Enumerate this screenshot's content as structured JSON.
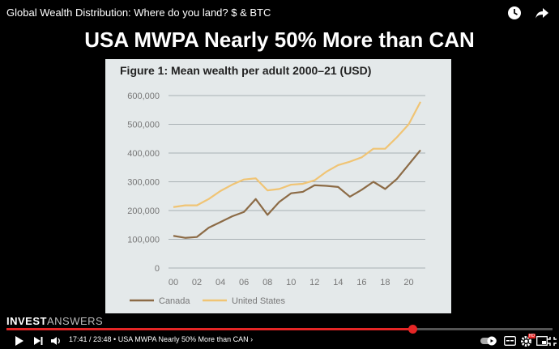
{
  "video": {
    "title": "Global Wealth Distribution: Where do you land? $ & BTC",
    "slide_title": "USA MWPA Nearly 50% More than CAN",
    "watermark_a": "INVEST",
    "watermark_b": "ANSWERS",
    "current_time": "17:41",
    "duration": "23:48",
    "time_text": "17:41 / 23:48 • USA MWPA Nearly 50% More than CAN ›",
    "progress_fraction": 0.743,
    "hd_badge": "HD"
  },
  "icons": {
    "top": [
      "clock-icon",
      "share-icon"
    ],
    "controls": [
      "play-icon",
      "next-icon",
      "volume-icon",
      "autoplay-toggle-icon",
      "subtitles-icon",
      "settings-icon",
      "miniplayer-icon",
      "exit-fullscreen-icon"
    ]
  },
  "colors": {
    "canada": "#8c6b46",
    "united_states": "#f0c474",
    "panel": "#e4e9ea",
    "progress": "#e52626"
  },
  "chart_data": {
    "type": "line",
    "title": "Figure 1: Mean wealth per adult 2000–21 (USD)",
    "xlabel": "",
    "ylabel": "",
    "x": [
      2000,
      2001,
      2002,
      2003,
      2004,
      2005,
      2006,
      2007,
      2008,
      2009,
      2010,
      2011,
      2012,
      2013,
      2014,
      2015,
      2016,
      2017,
      2018,
      2019,
      2020,
      2021
    ],
    "x_tick_labels": [
      "00",
      "02",
      "04",
      "06",
      "08",
      "10",
      "12",
      "14",
      "16",
      "18",
      "20"
    ],
    "y_ticks": [
      0,
      100000,
      200000,
      300000,
      400000,
      500000,
      600000
    ],
    "y_tick_labels": [
      "0",
      "100,000",
      "200,000",
      "300,000",
      "400,000",
      "500,000",
      "600,000"
    ],
    "ylim": [
      0,
      600000
    ],
    "xlim": [
      2000,
      2021
    ],
    "grid": true,
    "legend_position": "bottom-left",
    "series": [
      {
        "name": "Canada",
        "color": "#8c6b46",
        "values": [
          112000,
          105000,
          108000,
          140000,
          160000,
          180000,
          195000,
          240000,
          185000,
          230000,
          260000,
          265000,
          288000,
          286000,
          282000,
          248000,
          272000,
          300000,
          275000,
          310000,
          360000,
          410000
        ]
      },
      {
        "name": "United States",
        "color": "#f0c474",
        "values": [
          212000,
          218000,
          218000,
          240000,
          268000,
          290000,
          308000,
          312000,
          270000,
          275000,
          290000,
          293000,
          305000,
          335000,
          358000,
          370000,
          385000,
          415000,
          415000,
          455000,
          500000,
          578000
        ]
      }
    ]
  }
}
